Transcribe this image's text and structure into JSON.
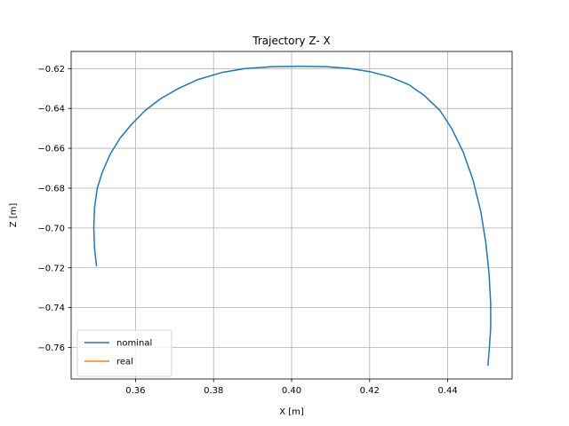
{
  "chart_data": {
    "type": "line",
    "title": "Trajectory Z- X",
    "xlabel": "X [m]",
    "ylabel": "Z [m]",
    "xlim": [
      0.3435,
      0.4565
    ],
    "ylim": [
      -0.7758,
      -0.6114
    ],
    "xticks": [
      0.36,
      0.38,
      0.4,
      0.42,
      0.44
    ],
    "xtick_labels": [
      "0.36",
      "0.38",
      "0.40",
      "0.42",
      "0.44"
    ],
    "yticks": [
      -0.62,
      -0.64,
      -0.66,
      -0.68,
      -0.7,
      -0.72,
      -0.74,
      -0.76
    ],
    "ytick_labels": [
      "−0.62",
      "−0.64",
      "−0.66",
      "−0.68",
      "−0.70",
      "−0.72",
      "−0.74",
      "−0.76"
    ],
    "grid": true,
    "legend_position": "lower-left",
    "series": [
      {
        "name": "nominal",
        "color": "#1f77b4",
        "x": [
          0.35,
          0.3495,
          0.3493,
          0.3495,
          0.3502,
          0.3515,
          0.3535,
          0.356,
          0.359,
          0.3625,
          0.3665,
          0.371,
          0.376,
          0.382,
          0.388,
          0.395,
          0.402,
          0.409,
          0.415,
          0.42,
          0.425,
          0.43,
          0.434,
          0.438,
          0.441,
          0.444,
          0.4465,
          0.4485,
          0.4498,
          0.4506,
          0.451,
          0.451,
          0.4507,
          0.4503
        ],
        "y": [
          -0.719,
          -0.71,
          -0.7,
          -0.69,
          -0.68,
          -0.672,
          -0.663,
          -0.655,
          -0.648,
          -0.641,
          -0.635,
          -0.63,
          -0.6255,
          -0.622,
          -0.62,
          -0.619,
          -0.6188,
          -0.619,
          -0.62,
          -0.6215,
          -0.624,
          -0.628,
          -0.6335,
          -0.641,
          -0.65,
          -0.662,
          -0.676,
          -0.692,
          -0.708,
          -0.723,
          -0.738,
          -0.75,
          -0.76,
          -0.769
        ]
      },
      {
        "name": "real",
        "color": "#ff7f0e",
        "x": [],
        "y": []
      }
    ]
  }
}
